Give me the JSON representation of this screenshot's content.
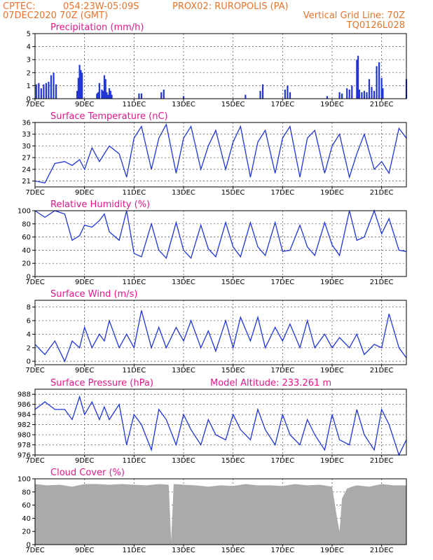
{
  "header": {
    "source": "CPTEC:",
    "coords": "054:23W-05:09S",
    "station": "PROX02: RUROPOLIS (PA)",
    "init": "07DEC2020 70Z (GMT)",
    "grid_note": "Vertical Grid Line: 70Z",
    "model_code": "TQ0126L028"
  },
  "colors": {
    "header": "#e8742a",
    "titles": "#e0188c",
    "line": "#2236d6",
    "cloud": "#aaaaaa"
  },
  "x_ticks": [
    "7DEC",
    "9DEC",
    "11DEC",
    "13DEC",
    "15DEC",
    "17DEC",
    "19DEC",
    "21DEC"
  ],
  "x_range_days": [
    0,
    15
  ],
  "x_tick_positions_days": [
    0,
    2,
    4,
    6,
    8,
    10,
    12,
    14
  ],
  "chart_data": [
    {
      "type": "bar",
      "title": "Precipitation (mm/h)",
      "ylim": [
        0,
        5
      ],
      "yticks": [
        0,
        1,
        2,
        3,
        4,
        5
      ],
      "x": [
        0.05,
        0.15,
        0.25,
        0.35,
        0.45,
        0.55,
        0.65,
        0.75,
        0.85,
        1.7,
        1.75,
        1.8,
        1.85,
        1.9,
        2.5,
        2.55,
        2.6,
        2.7,
        2.75,
        2.8,
        2.85,
        2.9,
        2.95,
        3.0,
        3.05,
        3.1,
        4.2,
        4.3,
        5.1,
        5.2,
        6.0,
        8.5,
        9.1,
        9.2,
        10.1,
        10.2,
        10.3,
        11.8,
        12.3,
        12.4,
        12.6,
        12.7,
        12.8,
        13.0,
        13.05,
        13.1,
        13.2,
        13.3,
        13.4,
        13.5,
        13.6,
        13.7,
        13.8,
        13.9,
        14.0,
        14.05,
        15.0
      ],
      "values": [
        1.1,
        1.2,
        0.8,
        1.1,
        1.2,
        1.3,
        1.8,
        2.0,
        1.1,
        0.6,
        1.6,
        2.6,
        2.2,
        2.0,
        0.4,
        0.5,
        1.2,
        0.7,
        0.6,
        1.8,
        1.5,
        0.5,
        0.3,
        0.8,
        0.6,
        0.3,
        0.4,
        0.4,
        0.5,
        0.7,
        0.2,
        0.3,
        0.6,
        1.1,
        0.7,
        1.0,
        0.5,
        0.2,
        0.5,
        0.4,
        0.8,
        0.7,
        1.0,
        3.0,
        3.3,
        0.7,
        0.5,
        0.6,
        0.5,
        1.5,
        0.9,
        0.6,
        2.5,
        2.8,
        1.6,
        0.8,
        1.5
      ]
    },
    {
      "type": "line",
      "title": "Surface Temperature (nC)",
      "ylim": [
        19.5,
        36
      ],
      "yticks": [
        21,
        24,
        27,
        30,
        33,
        36
      ],
      "x": [
        0,
        0.4,
        0.8,
        1.2,
        1.5,
        1.8,
        2.0,
        2.3,
        2.6,
        2.8,
        3.0,
        3.4,
        3.7,
        4.0,
        4.3,
        4.7,
        5.0,
        5.3,
        5.7,
        6.0,
        6.3,
        6.7,
        7.0,
        7.3,
        7.7,
        8.0,
        8.3,
        8.7,
        9.0,
        9.3,
        9.7,
        10.0,
        10.3,
        10.7,
        11.0,
        11.3,
        11.7,
        12.0,
        12.3,
        12.7,
        13.0,
        13.3,
        13.7,
        14.0,
        14.3,
        14.7,
        15.0
      ],
      "values": [
        21,
        20.5,
        25.5,
        26,
        25,
        26.5,
        24,
        29.5,
        26,
        28,
        30,
        28,
        22,
        32,
        35,
        24,
        32,
        35.5,
        23,
        32,
        35,
        24,
        30,
        34,
        24,
        31,
        35,
        22,
        31,
        34,
        23,
        32,
        35,
        22,
        32,
        34,
        23,
        30,
        33,
        22,
        28,
        33,
        24,
        26,
        23,
        34.5,
        32
      ]
    },
    {
      "type": "line",
      "title": "Relative Humidity (%)",
      "ylim": [
        0,
        100
      ],
      "yticks": [
        0,
        20,
        40,
        60,
        80,
        100
      ],
      "x": [
        0,
        0.4,
        0.8,
        1.2,
        1.5,
        1.8,
        2.0,
        2.3,
        2.6,
        2.8,
        3.0,
        3.4,
        3.7,
        4.0,
        4.3,
        4.7,
        5.0,
        5.3,
        5.7,
        6.0,
        6.3,
        6.7,
        7.0,
        7.3,
        7.7,
        8.0,
        8.3,
        8.7,
        9.0,
        9.3,
        9.7,
        10.0,
        10.3,
        10.7,
        11.0,
        11.3,
        11.7,
        12.0,
        12.3,
        12.7,
        13.0,
        13.3,
        13.7,
        14.0,
        14.3,
        14.7,
        15.0
      ],
      "values": [
        100,
        90,
        100,
        95,
        55,
        62,
        78,
        75,
        85,
        95,
        68,
        55,
        100,
        35,
        30,
        80,
        40,
        28,
        82,
        40,
        28,
        78,
        42,
        30,
        82,
        45,
        30,
        82,
        45,
        32,
        82,
        38,
        40,
        78,
        45,
        32,
        82,
        48,
        32,
        100,
        55,
        60,
        100,
        65,
        88,
        40,
        38
      ]
    },
    {
      "type": "line",
      "title": "Surface Wind (m/s)",
      "ylim": [
        -0.5,
        9
      ],
      "yticks": [
        0,
        2,
        4,
        6,
        8
      ],
      "x": [
        0,
        0.4,
        0.8,
        1.2,
        1.5,
        1.8,
        2.0,
        2.3,
        2.6,
        2.8,
        3.0,
        3.4,
        3.7,
        4.0,
        4.3,
        4.7,
        5.0,
        5.3,
        5.7,
        6.0,
        6.3,
        6.7,
        7.0,
        7.3,
        7.7,
        8.0,
        8.3,
        8.7,
        9.0,
        9.3,
        9.7,
        10.0,
        10.3,
        10.7,
        11.0,
        11.3,
        11.7,
        12.0,
        12.3,
        12.7,
        13.0,
        13.3,
        13.7,
        14.0,
        14.3,
        14.7,
        15.0
      ],
      "values": [
        2.5,
        1,
        3,
        0,
        3,
        2,
        5,
        2,
        4,
        3,
        6,
        2,
        4,
        2,
        7.5,
        2,
        5,
        2,
        5,
        3,
        6,
        2,
        4.5,
        1.5,
        6,
        2,
        6.5,
        3,
        6.5,
        2,
        5,
        3,
        5.5,
        2,
        6,
        2,
        4,
        2,
        3.5,
        2,
        4,
        1,
        2.5,
        2,
        7,
        2,
        0.5
      ]
    },
    {
      "type": "line",
      "title": "Surface Pressure (hPa)",
      "annotation": "Model Altitude: 233.261 m",
      "ylim": [
        976,
        989
      ],
      "yticks": [
        976,
        978,
        980,
        982,
        984,
        986,
        988
      ],
      "x": [
        0,
        0.4,
        0.8,
        1.2,
        1.5,
        1.8,
        2.0,
        2.3,
        2.6,
        2.8,
        3.0,
        3.4,
        3.7,
        4.0,
        4.3,
        4.7,
        5.0,
        5.3,
        5.7,
        6.0,
        6.3,
        6.7,
        7.0,
        7.3,
        7.7,
        8.0,
        8.3,
        8.7,
        9.0,
        9.3,
        9.7,
        10.0,
        10.3,
        10.7,
        11.0,
        11.3,
        11.7,
        12.0,
        12.3,
        12.7,
        13.0,
        13.3,
        13.7,
        14.0,
        14.3,
        14.7,
        15.0
      ],
      "values": [
        985,
        986.5,
        985,
        985,
        983,
        987.5,
        984,
        986.5,
        983,
        985.5,
        983,
        986,
        978,
        984,
        982,
        977,
        985,
        983,
        978,
        984,
        981,
        978,
        983,
        980,
        979,
        984,
        981,
        979,
        985,
        981,
        978,
        984,
        980,
        978,
        983,
        980,
        977,
        984,
        979,
        978,
        985,
        980,
        977,
        985,
        982,
        976,
        979
      ]
    },
    {
      "type": "area",
      "title": "Cloud Cover (%)",
      "ylim": [
        0,
        100
      ],
      "yticks": [
        0,
        20,
        40,
        60,
        80,
        100
      ],
      "x": [
        0,
        0.5,
        1.0,
        1.5,
        2.0,
        2.5,
        3.0,
        3.5,
        4.0,
        4.5,
        5.0,
        5.4,
        5.5,
        5.6,
        6.0,
        6.5,
        7.0,
        7.5,
        8.0,
        8.5,
        9.0,
        9.5,
        10.0,
        10.5,
        11.0,
        11.5,
        12.0,
        12.2,
        12.3,
        12.4,
        12.6,
        12.8,
        13.0,
        13.5,
        14.0,
        14.5,
        15.0
      ],
      "values": [
        92,
        90,
        91,
        88,
        92,
        92,
        91,
        92,
        91,
        90,
        92,
        91,
        5,
        92,
        91,
        90,
        88,
        90,
        89,
        92,
        90,
        90,
        89,
        92,
        90,
        91,
        88,
        40,
        20,
        70,
        85,
        88,
        90,
        88,
        92,
        90,
        90
      ]
    }
  ]
}
